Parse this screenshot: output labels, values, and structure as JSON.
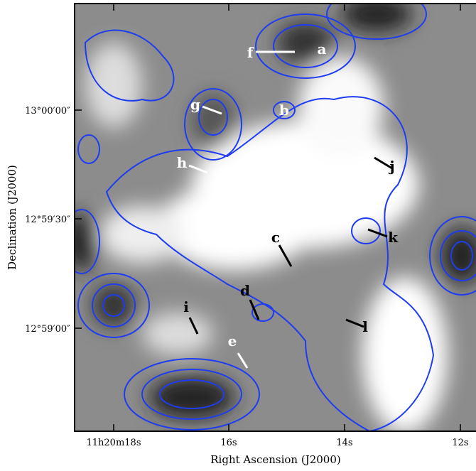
{
  "x_axis": {
    "label": "Right Ascension (J2000)",
    "ticks": [
      "11h20m18s",
      "16s",
      "14s",
      "12s"
    ]
  },
  "y_axis": {
    "label": "Declination (J2000)",
    "ticks": [
      "13°00′00″",
      "12°59′30″",
      "12°59′00″"
    ]
  },
  "labels": [
    "a",
    "b",
    "c",
    "d",
    "e",
    "f",
    "g",
    "h",
    "i",
    "j",
    "k",
    "l"
  ]
}
